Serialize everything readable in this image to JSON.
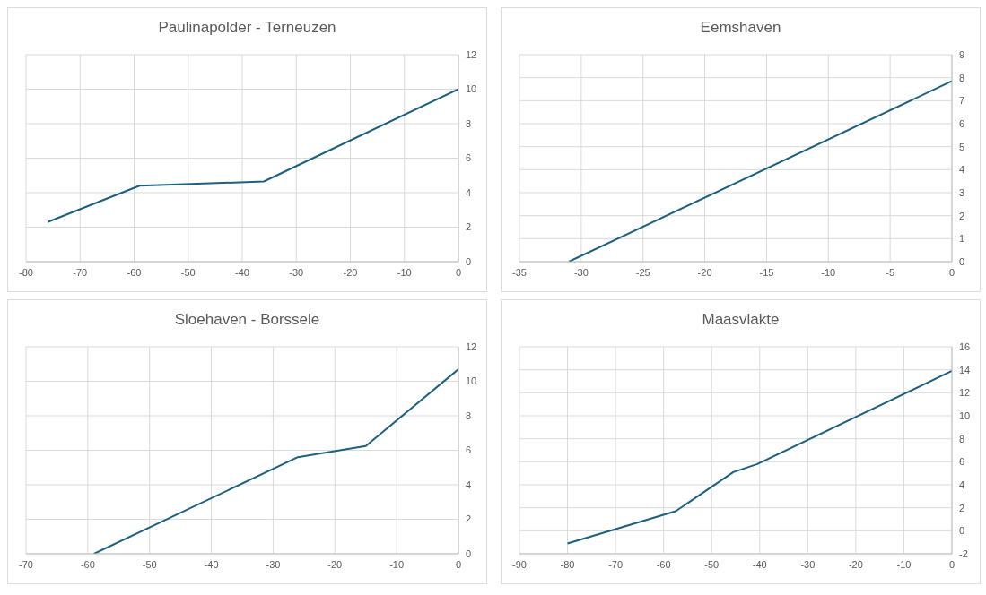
{
  "chart_data": [
    {
      "type": "line",
      "title": "Paulinapolder - Terneuzen",
      "x": [
        -76,
        -59,
        -36,
        0
      ],
      "series": [
        {
          "color": "#1d5f7e",
          "values": [
            2.3,
            4.4,
            4.65,
            10
          ]
        }
      ],
      "xlim": [
        -80,
        0
      ],
      "xticks": [
        -80,
        -70,
        -60,
        -50,
        -40,
        -30,
        -20,
        -10,
        0
      ],
      "ylim": [
        0,
        12
      ],
      "yticks": [
        0,
        2,
        4,
        6,
        8,
        10,
        12
      ],
      "grid": true,
      "legend": false,
      "marker": "none",
      "line_style": "solid"
    },
    {
      "type": "line",
      "title": "Eemshaven",
      "x": [
        -31,
        0
      ],
      "series": [
        {
          "color": "#1d5f7e",
          "values": [
            0,
            7.85
          ]
        }
      ],
      "xlim": [
        -35,
        0
      ],
      "xticks": [
        -35,
        -30,
        -25,
        -20,
        -15,
        -10,
        -5,
        0
      ],
      "ylim": [
        0,
        9
      ],
      "yticks": [
        0,
        1,
        2,
        3,
        4,
        5,
        6,
        7,
        8,
        9
      ],
      "grid": true,
      "legend": false,
      "marker": "none",
      "line_style": "solid"
    },
    {
      "type": "line",
      "title": "Sloehaven - Borssele",
      "x": [
        -59,
        -26,
        -15,
        0
      ],
      "series": [
        {
          "color": "#1d5f7e",
          "values": [
            0,
            5.6,
            6.25,
            10.7
          ]
        }
      ],
      "xlim": [
        -70,
        0
      ],
      "xticks": [
        -70,
        -60,
        -50,
        -40,
        -30,
        -20,
        -10,
        0
      ],
      "ylim": [
        0,
        12
      ],
      "yticks": [
        0,
        2,
        4,
        6,
        8,
        10,
        12
      ],
      "grid": true,
      "legend": false,
      "marker": "none",
      "line_style": "solid"
    },
    {
      "type": "line",
      "title": "Maasvlakte",
      "x": [
        -80,
        -57.5,
        -45.5,
        -40.5,
        0
      ],
      "series": [
        {
          "color": "#1d5f7e",
          "values": [
            -1.1,
            1.7,
            5.1,
            5.8,
            13.9
          ]
        }
      ],
      "xlim": [
        -90,
        0
      ],
      "xticks": [
        -90,
        -80,
        -70,
        -60,
        -50,
        -40,
        -30,
        -20,
        -10,
        0
      ],
      "ylim": [
        -2,
        16
      ],
      "yticks": [
        -2,
        0,
        2,
        4,
        6,
        8,
        10,
        12,
        14,
        16
      ],
      "grid": true,
      "legend": false,
      "marker": "none",
      "line_style": "solid"
    }
  ]
}
